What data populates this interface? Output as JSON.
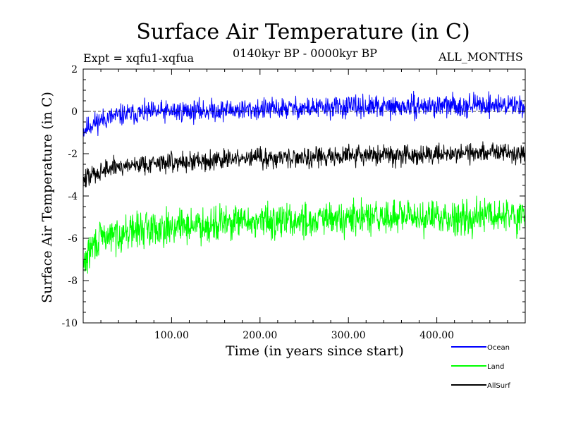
{
  "chart_data": {
    "type": "line",
    "title": "Surface Air Temperature (in C)",
    "subtitle": "0140kyr BP - 0000kyr BP",
    "experiment": "Expt = xqfu1-xqfua",
    "months": "ALL_MONTHS",
    "xlabel": "Time (in years since start)",
    "ylabel": "Surface Air Temperature (in C)",
    "xlim": [
      0,
      500
    ],
    "ylim": [
      -10,
      2
    ],
    "x_ticks": [
      100,
      200,
      300,
      400
    ],
    "x_tick_labels": [
      "100.00",
      "200.00",
      "300.00",
      "400.00"
    ],
    "y_ticks": [
      -10,
      -8,
      -6,
      -4,
      -2,
      0,
      2
    ],
    "y_tick_labels": [
      "-10",
      "-8",
      "-6",
      "-4",
      "-2",
      "0",
      "2"
    ],
    "reference_line": 0,
    "series": [
      {
        "name": "Ocean",
        "color": "#0000ff",
        "x": [
          0,
          10,
          20,
          40,
          60,
          80,
          100,
          150,
          200,
          250,
          300,
          350,
          400,
          450,
          500
        ],
        "values": [
          -0.9,
          -0.6,
          -0.4,
          -0.2,
          -0.1,
          -0.05,
          0.0,
          0.05,
          0.1,
          0.15,
          0.2,
          0.2,
          0.25,
          0.3,
          0.3
        ],
        "spread": 0.75
      },
      {
        "name": "Land",
        "color": "#00ff00",
        "x": [
          0,
          10,
          20,
          40,
          60,
          80,
          100,
          150,
          200,
          250,
          300,
          350,
          400,
          450,
          500
        ],
        "values": [
          -7.3,
          -6.4,
          -6.0,
          -5.8,
          -5.6,
          -5.5,
          -5.45,
          -5.3,
          -5.2,
          -5.15,
          -5.1,
          -5.0,
          -5.0,
          -4.95,
          -4.9
        ],
        "spread": 1.2
      },
      {
        "name": "AllSurf",
        "color": "#000000",
        "x": [
          0,
          10,
          20,
          40,
          60,
          80,
          100,
          150,
          200,
          250,
          300,
          350,
          400,
          450,
          500
        ],
        "values": [
          -3.3,
          -3.0,
          -2.8,
          -2.6,
          -2.5,
          -2.45,
          -2.4,
          -2.3,
          -2.2,
          -2.15,
          -2.1,
          -2.05,
          -2.0,
          -1.95,
          -1.9
        ],
        "spread": 0.7
      }
    ]
  }
}
